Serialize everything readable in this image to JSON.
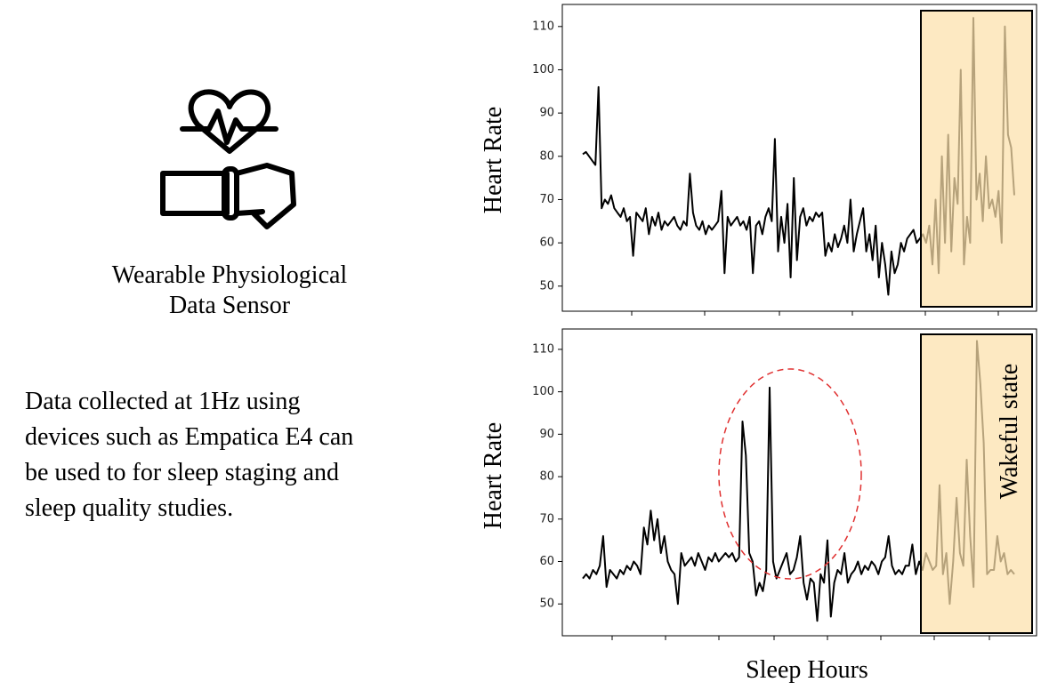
{
  "figure": {
    "sensor_label": [
      "Wearable Physiological",
      "Data Sensor"
    ],
    "description": [
      "Data collected at 1Hz using",
      "devices such as Empatica E4 can",
      "be used to for sleep staging and",
      "sleep quality studies."
    ]
  },
  "chart_data": [
    {
      "type": "line",
      "ylabel": "Heart Rate",
      "color": "#000000",
      "ylim": [
        44.2,
        115.1
      ],
      "yticks": [
        50,
        60,
        70,
        80,
        90,
        100,
        110
      ],
      "values": [
        80.5,
        81,
        80,
        79,
        78,
        96,
        68,
        70,
        69,
        71,
        68,
        67,
        66,
        68,
        65,
        66,
        57,
        67,
        66,
        65,
        68,
        62,
        66,
        64,
        67,
        63,
        65,
        64,
        65,
        66,
        64,
        63,
        65,
        64,
        76,
        67,
        64,
        63,
        65,
        62,
        64,
        63,
        64,
        65,
        72,
        53,
        66,
        64,
        65,
        66,
        64,
        65,
        63,
        66,
        53,
        64,
        65,
        62,
        66,
        68,
        65,
        84,
        58,
        66,
        60,
        69,
        52,
        75,
        56,
        66,
        68,
        64,
        66,
        65,
        67,
        66,
        67,
        57,
        60,
        58,
        62,
        59,
        61,
        64,
        60,
        70,
        58,
        62,
        65,
        68,
        58,
        62,
        56,
        64,
        52,
        60,
        55,
        48,
        58,
        53,
        55,
        60,
        58,
        61,
        62,
        63,
        60,
        61,
        62,
        60,
        64,
        55,
        70,
        53,
        80,
        60,
        85,
        58,
        75,
        69,
        100,
        55,
        66,
        60,
        112,
        70,
        76,
        65,
        80,
        68,
        70,
        66,
        72,
        60,
        110,
        85,
        82,
        71
      ]
    },
    {
      "type": "line",
      "ylabel": "Heart Rate",
      "xlabel": "Sleep Hours",
      "annotation": "Wakeful state",
      "color": "#000000",
      "ylim": [
        42.5,
        114.8
      ],
      "yticks": [
        50,
        60,
        70,
        80,
        90,
        100,
        110
      ],
      "values": [
        56,
        57,
        56,
        58,
        57,
        59,
        66,
        54,
        58,
        57,
        56,
        58,
        57,
        59,
        58,
        60,
        59,
        57,
        68,
        64,
        72,
        65,
        70,
        62,
        66,
        60,
        58,
        57,
        50,
        62,
        59,
        60,
        61,
        59,
        62,
        60,
        58,
        61,
        60,
        62,
        60,
        61,
        62,
        61,
        62,
        60,
        61,
        93,
        85,
        62,
        60,
        52,
        55,
        53,
        58,
        101,
        60,
        56,
        58,
        60,
        62,
        57,
        58,
        61,
        66,
        55,
        51,
        56,
        55,
        46,
        57,
        55,
        65,
        47,
        55,
        58,
        57,
        62,
        55,
        57,
        58,
        60,
        57,
        59,
        58,
        60,
        59,
        57,
        60,
        61,
        66,
        59,
        57,
        58,
        57,
        59,
        59,
        64,
        57,
        60,
        58,
        62,
        60,
        58,
        59,
        78,
        57,
        62,
        50,
        60,
        75,
        62,
        59,
        84,
        66,
        54,
        112,
        102,
        88,
        57,
        58,
        58,
        66,
        60,
        62,
        57,
        58,
        57
      ]
    }
  ]
}
